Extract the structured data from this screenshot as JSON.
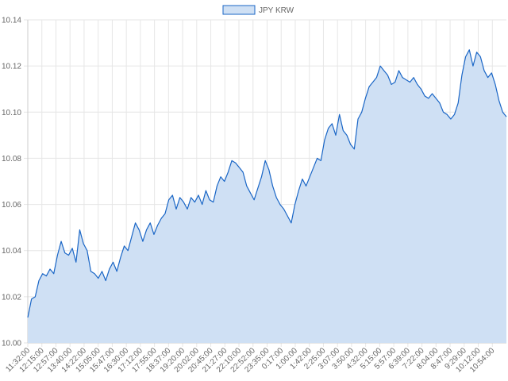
{
  "colors": {
    "line": "#1a66c6",
    "fill": "#cfe0f4",
    "grid": "#e6e6e6",
    "axis": "#cccccc",
    "text": "#666666"
  },
  "chart_data": {
    "type": "area",
    "title": "",
    "xlabel": "",
    "ylabel": "",
    "grid": true,
    "legend_position": "top-center",
    "ylim": [
      10.0,
      10.14
    ],
    "yticks": [
      "10.14",
      "10.12",
      "10.10",
      "10.08",
      "10.06",
      "10.04",
      "10.02",
      "10.00"
    ],
    "x_tick_labels": [
      "11:32:00",
      "12:15:00",
      "12:57:00",
      "13:40:00",
      "14:22:00",
      "15:05:00",
      "15:47:00",
      "16:30:00",
      "17:12:00",
      "17:55:00",
      "18:37:00",
      "19:20:00",
      "20:02:00",
      "20:45:00",
      "21:27:00",
      "22:10:00",
      "22:52:00",
      "23:35:00",
      "0:17:00",
      "1:00:00",
      "1:42:00",
      "2:25:00",
      "3:07:00",
      "3:50:00",
      "4:32:00",
      "5:15:00",
      "5:57:00",
      "6:39:00",
      "7:22:00",
      "8:04:00",
      "8:47:00",
      "9:29:00",
      "10:12:00",
      "10:54:00"
    ],
    "series": [
      {
        "name": "JPY KRW",
        "values": [
          10.011,
          10.019,
          10.02,
          10.027,
          10.03,
          10.029,
          10.032,
          10.03,
          10.038,
          10.044,
          10.039,
          10.038,
          10.041,
          10.035,
          10.049,
          10.043,
          10.04,
          10.031,
          10.03,
          10.028,
          10.031,
          10.027,
          10.032,
          10.035,
          10.031,
          10.037,
          10.042,
          10.04,
          10.046,
          10.052,
          10.049,
          10.044,
          10.049,
          10.052,
          10.047,
          10.051,
          10.054,
          10.056,
          10.062,
          10.064,
          10.058,
          10.063,
          10.061,
          10.058,
          10.063,
          10.061,
          10.064,
          10.06,
          10.066,
          10.062,
          10.061,
          10.068,
          10.072,
          10.07,
          10.074,
          10.079,
          10.078,
          10.076,
          10.074,
          10.068,
          10.065,
          10.062,
          10.067,
          10.072,
          10.079,
          10.075,
          10.068,
          10.063,
          10.06,
          10.058,
          10.055,
          10.052,
          10.06,
          10.066,
          10.071,
          10.068,
          10.072,
          10.076,
          10.08,
          10.079,
          10.088,
          10.093,
          10.095,
          10.09,
          10.099,
          10.092,
          10.09,
          10.086,
          10.084,
          10.097,
          10.1,
          10.106,
          10.111,
          10.113,
          10.115,
          10.12,
          10.118,
          10.116,
          10.112,
          10.113,
          10.118,
          10.115,
          10.114,
          10.113,
          10.115,
          10.112,
          10.11,
          10.107,
          10.106,
          10.108,
          10.106,
          10.104,
          10.1,
          10.099,
          10.097,
          10.099,
          10.104,
          10.116,
          10.124,
          10.127,
          10.12,
          10.126,
          10.124,
          10.118,
          10.115,
          10.117,
          10.112,
          10.105,
          10.1,
          10.098
        ]
      }
    ]
  }
}
